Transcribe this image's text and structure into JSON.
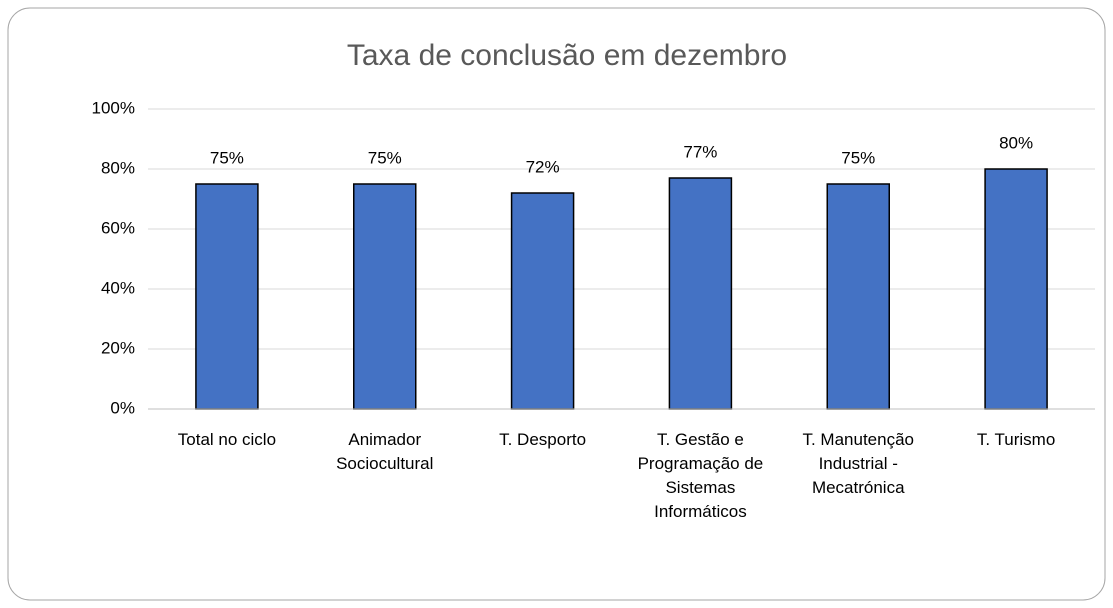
{
  "chart_data": {
    "type": "bar",
    "title": "Taxa de conclusão em dezembro",
    "categories": [
      "Total no ciclo",
      "Animador Sociocultural",
      "T. Desporto",
      "T. Gestão e Programação de Sistemas Informáticos",
      "T. Manutenção Industrial - Mecatrónica",
      "T. Turismo"
    ],
    "values": [
      75,
      75,
      72,
      77,
      75,
      80
    ],
    "value_labels": [
      "75%",
      "75%",
      "72%",
      "77%",
      "75%",
      "80%"
    ],
    "color": "#4472c4",
    "ylim": [
      0,
      100
    ],
    "yticks": [
      {
        "value": 0,
        "label": "0%"
      },
      {
        "value": 20,
        "label": "20%"
      },
      {
        "value": 40,
        "label": "40%"
      },
      {
        "value": 60,
        "label": "60%"
      },
      {
        "value": 80,
        "label": "80%"
      },
      {
        "value": 100,
        "label": "100%"
      }
    ],
    "grid": true
  }
}
